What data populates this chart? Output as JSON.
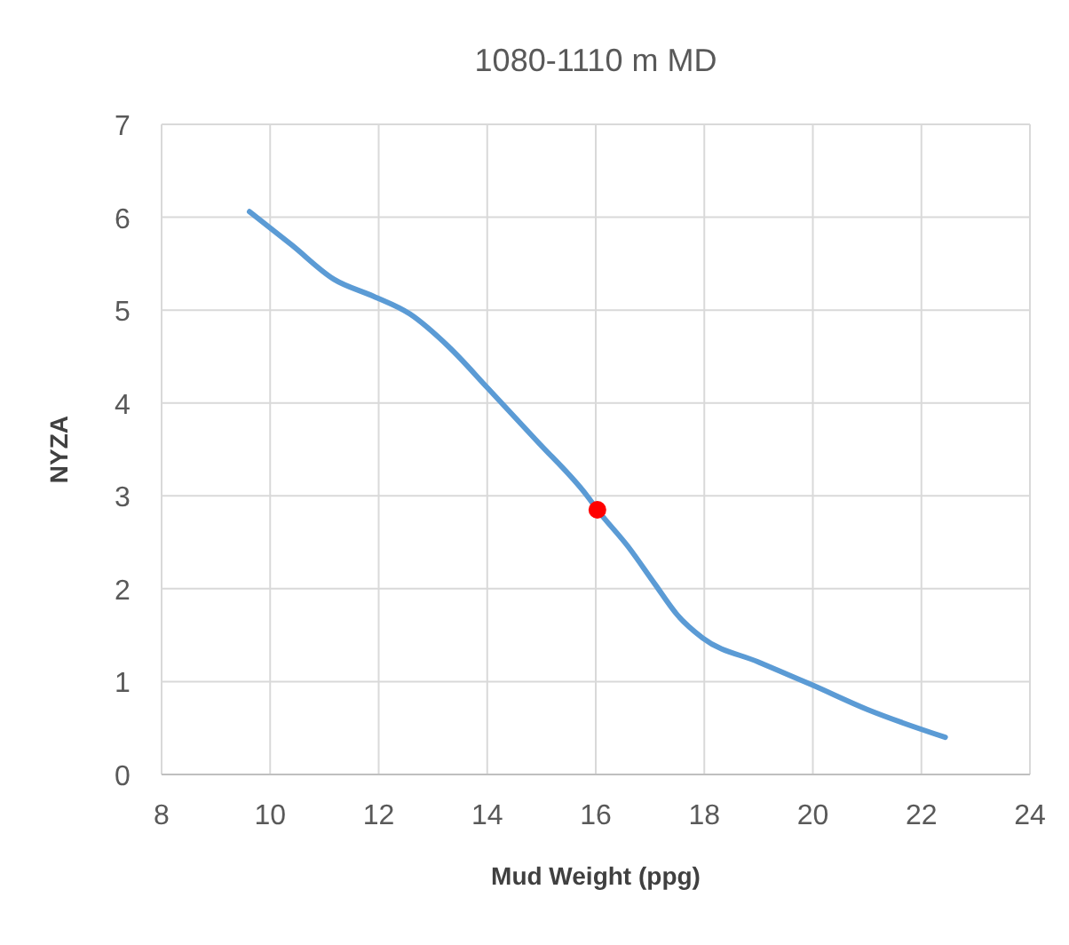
{
  "chart_data": {
    "type": "line",
    "title": "1080-1110 m MD",
    "xlabel": "Mud Weight (ppg)",
    "ylabel": "NYZA",
    "xlim": [
      8,
      24
    ],
    "xticks": [
      8,
      10,
      12,
      14,
      16,
      18,
      20,
      22,
      24
    ],
    "ylim": [
      0,
      7
    ],
    "yticks": [
      0,
      1,
      2,
      3,
      4,
      5,
      6,
      7
    ],
    "grid": true,
    "series": [
      {
        "color": "#5b9bd5",
        "marker": "none",
        "x": [
          9.62,
          10.4,
          11.18,
          11.9,
          12.57,
          13.3,
          14.01,
          14.9,
          15.84,
          16.03,
          16.6,
          17.09,
          17.5,
          17.97,
          19.0,
          20.0,
          21.0,
          22.44
        ],
        "values": [
          6.06,
          5.7,
          5.33,
          5.15,
          4.96,
          4.6,
          4.16,
          3.6,
          3.0,
          2.85,
          2.45,
          2.05,
          1.72,
          1.47,
          1.21,
          0.96,
          0.7,
          0.4
        ]
      },
      {
        "type": "scatter",
        "color": "#ff0000",
        "marker": "circle",
        "x": [
          16.03
        ],
        "values": [
          2.85
        ]
      }
    ]
  }
}
